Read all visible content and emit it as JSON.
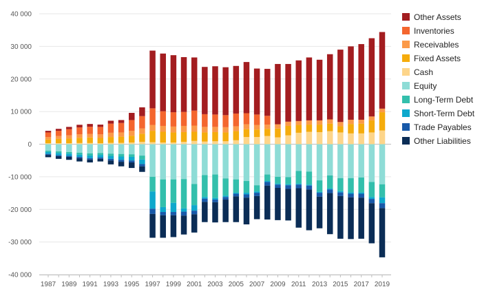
{
  "chart_data": {
    "type": "bar",
    "stacked": true,
    "grid": true,
    "legend_position": "right",
    "ylim": [
      -40000,
      40000
    ],
    "y_ticks": [
      40000,
      30000,
      20000,
      10000,
      0,
      -10000,
      -20000,
      -30000,
      -40000
    ],
    "y_tick_labels": [
      "40 000",
      "30 000",
      "20 000",
      "10 000",
      "0",
      "-10 000",
      "-20 000",
      "-30 000",
      "-40 000"
    ],
    "x_tick_labels": [
      "1987",
      "1989",
      "1991",
      "1993",
      "1995",
      "1997",
      "1999",
      "2001",
      "2003",
      "2005",
      "2007",
      "2009",
      "2011",
      "2013",
      "2015",
      "2017",
      "2019"
    ],
    "categories": [
      "1987",
      "1988",
      "1989",
      "1990",
      "1991",
      "1992",
      "1993",
      "1994",
      "1995",
      "1996",
      "1997",
      "1998",
      "1999",
      "2000",
      "2001",
      "2002",
      "2003",
      "2004",
      "2005",
      "2006",
      "2007",
      "2008",
      "2009",
      "2010",
      "2011",
      "2012",
      "2013",
      "2014",
      "2015",
      "2016",
      "2017",
      "2018",
      "2019"
    ],
    "asset_series": [
      {
        "name": "Cash",
        "color": "#fdd58a",
        "values": [
          300,
          300,
          300,
          350,
          350,
          300,
          400,
          400,
          500,
          700,
          600,
          500,
          500,
          700,
          1000,
          800,
          900,
          900,
          1200,
          2200,
          2200,
          2500,
          2100,
          2700,
          3500,
          3800,
          3700,
          4000,
          3600,
          3300,
          3300,
          3600,
          4200
        ]
      },
      {
        "name": "Fixed Assets",
        "color": "#f5ac0c",
        "values": [
          1100,
          1300,
          1400,
          1600,
          1700,
          1600,
          1800,
          1900,
          2100,
          2500,
          3500,
          3300,
          3100,
          3000,
          2800,
          2800,
          2800,
          2700,
          2800,
          2400,
          2300,
          2200,
          2700,
          2900,
          2400,
          2200,
          2300,
          2300,
          1900,
          2900,
          3000,
          3700,
          5600
        ]
      },
      {
        "name": "Receivables",
        "color": "#fb9a49",
        "values": [
          800,
          900,
          1000,
          1100,
          1100,
          1100,
          1300,
          1300,
          1500,
          1600,
          1800,
          1800,
          1800,
          1900,
          1900,
          1700,
          1600,
          1600,
          1500,
          1500,
          1400,
          1300,
          1300,
          1300,
          1200,
          1300,
          1300,
          1300,
          1300,
          1300,
          1200,
          1200,
          1100
        ]
      },
      {
        "name": "Inventories",
        "color": "#f4662e",
        "values": [
          1400,
          1600,
          1900,
          2100,
          2200,
          2300,
          2800,
          2900,
          3300,
          3800,
          5100,
          4500,
          4400,
          4300,
          4600,
          3900,
          3800,
          3700,
          3900,
          3400,
          3200,
          2700,
          0,
          0,
          0,
          0,
          0,
          0,
          0,
          0,
          0,
          0,
          0
        ]
      },
      {
        "name": "Other Assets",
        "color": "#a31d20",
        "values": [
          500,
          600,
          700,
          800,
          850,
          700,
          900,
          900,
          2200,
          2700,
          17700,
          17700,
          17500,
          16800,
          16300,
          14500,
          14800,
          14700,
          14600,
          15700,
          14100,
          14400,
          18500,
          17700,
          18600,
          19300,
          18600,
          20000,
          22200,
          22500,
          23200,
          24000,
          23500
        ]
      }
    ],
    "liability_series": [
      {
        "name": "Equity",
        "color": "#8edcd6",
        "values": [
          2000,
          2200,
          2400,
          2600,
          2800,
          2700,
          2900,
          3000,
          3100,
          3500,
          10000,
          10800,
          10800,
          10700,
          12200,
          9500,
          9300,
          10500,
          10800,
          11300,
          12600,
          9300,
          10000,
          10100,
          8200,
          8400,
          11100,
          9600,
          10400,
          10400,
          10200,
          11600,
          12300
        ]
      },
      {
        "name": "Long-Term Debt",
        "color": "#33bfac",
        "values": [
          400,
          500,
          500,
          600,
          700,
          600,
          700,
          800,
          800,
          1200,
          4500,
          8500,
          7200,
          9000,
          6500,
          6700,
          7200,
          5300,
          4100,
          3600,
          1900,
          2000,
          2100,
          2200,
          3900,
          4000,
          3500,
          4000,
          4000,
          4400,
          4600,
          4600,
          4000
        ]
      },
      {
        "name": "Short-Term Debt",
        "color": "#0ea8cc",
        "values": [
          600,
          700,
          700,
          700,
          800,
          800,
          900,
          1000,
          1100,
          1400,
          5300,
          1500,
          2800,
          1000,
          1700,
          500,
          500,
          400,
          300,
          500,
          400,
          300,
          300,
          300,
          300,
          300,
          300,
          300,
          400,
          400,
          400,
          600,
          1800
        ]
      },
      {
        "name": "Trade Payables",
        "color": "#1859a9",
        "values": [
          300,
          300,
          300,
          400,
          400,
          400,
          500,
          600,
          600,
          700,
          1600,
          1000,
          1000,
          1200,
          1100,
          1000,
          800,
          800,
          800,
          1000,
          1000,
          1100,
          1000,
          1100,
          1100,
          1200,
          1200,
          1100,
          1100,
          1100,
          1200,
          1300,
          1500
        ]
      },
      {
        "name": "Other Liabilities",
        "color": "#0b2d56",
        "values": [
          700,
          800,
          900,
          1000,
          900,
          800,
          1200,
          1400,
          1700,
          1700,
          7300,
          6900,
          6700,
          5800,
          5600,
          6200,
          6200,
          6900,
          7900,
          8200,
          7100,
          10400,
          9900,
          9700,
          12100,
          12500,
          9700,
          12600,
          13100,
          12800,
          12600,
          12300,
          15100
        ]
      }
    ],
    "legend_order": [
      "Other Assets",
      "Inventories",
      "Receivables",
      "Fixed Assets",
      "Cash",
      "Equity",
      "Long-Term Debt",
      "Short-Term Debt",
      "Trade Payables",
      "Other Liabilities"
    ]
  }
}
